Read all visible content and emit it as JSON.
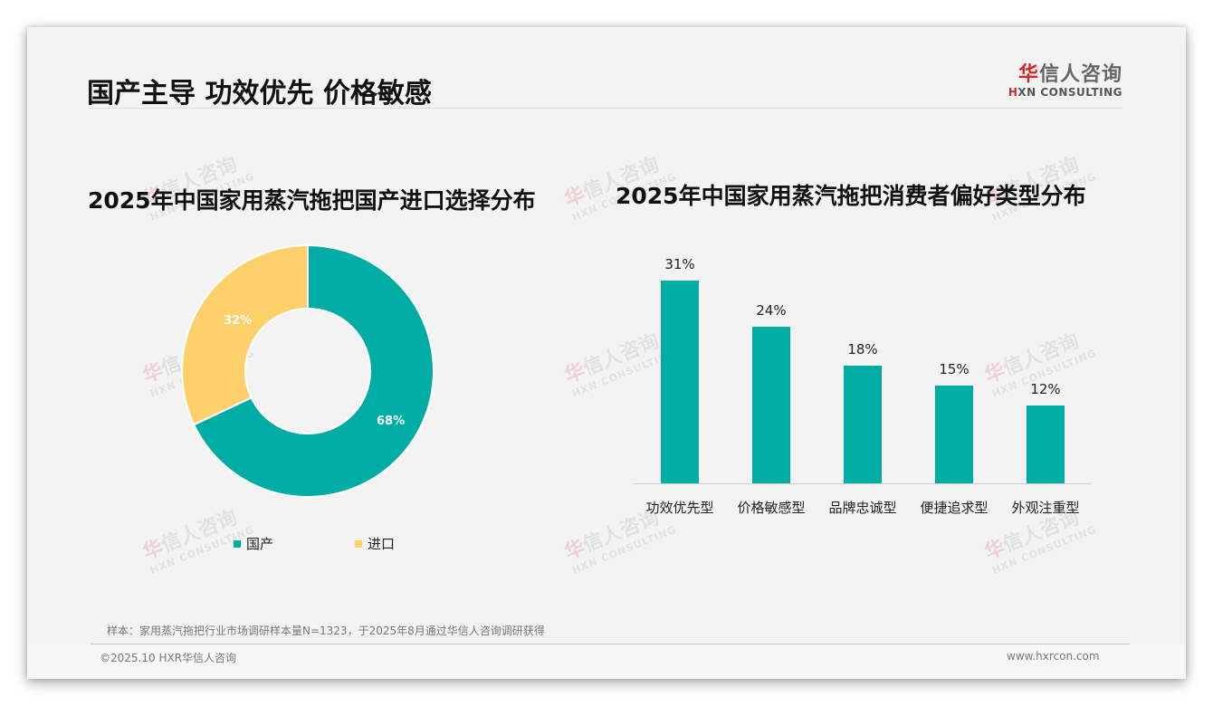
{
  "header": {
    "title": "国产主导 功效优先 价格敏感",
    "logo_cn_first": "华",
    "logo_cn_rest": "信人咨询",
    "logo_en_first": "H",
    "logo_en_rest": "XN CONSULTING"
  },
  "watermark": {
    "cn_first": "华",
    "cn_rest": "信人咨询",
    "en": "HXN CONSULTING"
  },
  "left_chart": {
    "title": "2025年中国家用蒸汽拖把国产进口选择分布",
    "slices": [
      {
        "label": "国产",
        "value_label": "68%",
        "color": "#00ada5"
      },
      {
        "label": "进口",
        "value_label": "32%",
        "color": "#fdd06a"
      }
    ]
  },
  "right_chart": {
    "title": "2025年中国家用蒸汽拖把消费者偏好类型分布",
    "bars": [
      {
        "label": "功效优先型",
        "value_label": "31%"
      },
      {
        "label": "价格敏感型",
        "value_label": "24%"
      },
      {
        "label": "品牌忠诚型",
        "value_label": "18%"
      },
      {
        "label": "便捷追求型",
        "value_label": "15%"
      },
      {
        "label": "外观注重型",
        "value_label": "12%"
      }
    ],
    "color": "#00ada5"
  },
  "footer": {
    "note": "样本：家用蒸汽拖把行业市场调研样本量N=1323，于2025年8月通过华信人咨询调研获得",
    "copyright": "©2025.10 HXR华信人咨询",
    "website": "www.hxrcon.com"
  },
  "chart_data": [
    {
      "type": "pie",
      "title": "2025年中国家用蒸汽拖把国产进口选择分布",
      "categories": [
        "国产",
        "进口"
      ],
      "values": [
        68,
        32
      ],
      "unit": "%",
      "donut": true,
      "colors": [
        "#00ada5",
        "#fdd06a"
      ],
      "legend_position": "bottom"
    },
    {
      "type": "bar",
      "title": "2025年中国家用蒸汽拖把消费者偏好类型分布",
      "categories": [
        "功效优先型",
        "价格敏感型",
        "品牌忠诚型",
        "便捷追求型",
        "外观注重型"
      ],
      "values": [
        31,
        24,
        18,
        15,
        12
      ],
      "unit": "%",
      "xlabel": "",
      "ylabel": "",
      "grid": false,
      "data_labels": true,
      "color": "#00ada5"
    }
  ]
}
